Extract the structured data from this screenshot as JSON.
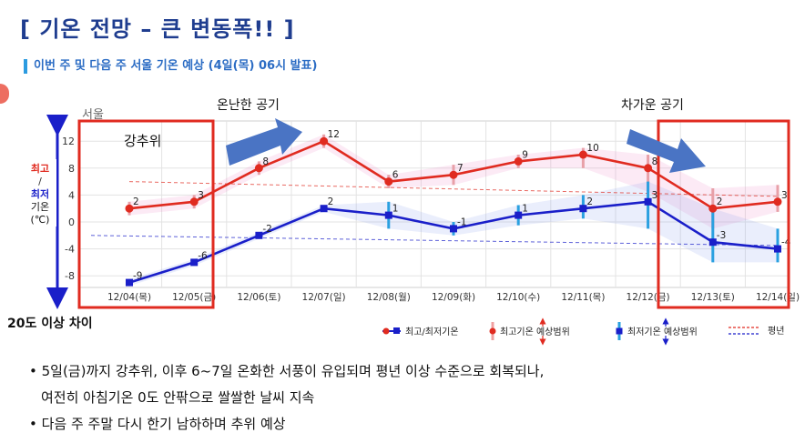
{
  "title": "[ 기온 전망 – 큰 변동폭!! ]",
  "subtitle": "이번 주 및 다음 주 서울 기온 예상 (4일(목) 06시 발표)",
  "city": "서울",
  "ylabel": {
    "l1": "최고",
    "l2": "/",
    "l3": "최저",
    "l4": "기온",
    "l5": "(℃)"
  },
  "annotations": {
    "cold": "강추위",
    "warm_air": "온난한 공기",
    "cold_air": "차가운 공기",
    "diff": "20도 이상 차이"
  },
  "legend": {
    "obs": "최고/최저기온",
    "max_range": "최고기온 예상범위",
    "min_range": "최저기온 예상범위",
    "normal": "평년"
  },
  "bullets": [
    "• 5일(금)까지 강추위, 이후 6~7일 온화한 서풍이 유입되며 평년 이상 수준으로 회복되나,",
    "   여전히 아침기온 0도 안팎으로 쌀쌀한 날씨 지속",
    "• 다음 주 주말 다시 한기 남하하며 추위 예상"
  ],
  "chart_data": {
    "type": "line",
    "categories": [
      "12/04(목)",
      "12/05(금)",
      "12/06(토)",
      "12/07(일)",
      "12/08(월)",
      "12/09(화)",
      "12/10(수)",
      "12/11(목)",
      "12/12(금)",
      "12/13(토)",
      "12/14(일)"
    ],
    "yticks": [
      -8,
      -4,
      0,
      4,
      8,
      12
    ],
    "ylim": [
      -10,
      14
    ],
    "series": [
      {
        "key": "max",
        "values": [
          2,
          3,
          8,
          12,
          6,
          7,
          9,
          10,
          8,
          2,
          3
        ],
        "color": "#e02b20"
      },
      {
        "key": "min",
        "values": [
          -9,
          -6,
          -2,
          2,
          1,
          -1,
          1,
          2,
          3,
          -3,
          -4
        ],
        "color": "#1a1fc9"
      }
    ],
    "max_range": [
      [
        1,
        3
      ],
      [
        2,
        4
      ],
      [
        7,
        9
      ],
      [
        11,
        13
      ],
      [
        5,
        7
      ],
      [
        5.5,
        8.5
      ],
      [
        8,
        10
      ],
      [
        8,
        11
      ],
      [
        4.5,
        10
      ],
      [
        -1,
        5
      ],
      [
        1.5,
        5.5
      ]
    ],
    "min_range": [
      [
        -9.5,
        -8.5
      ],
      [
        -6.5,
        -5.5
      ],
      [
        -2.5,
        -1.5
      ],
      [
        1.5,
        2.5
      ],
      [
        -1,
        3
      ],
      [
        -2,
        0
      ],
      [
        -0.5,
        2.5
      ],
      [
        0.5,
        4
      ],
      [
        -1,
        6
      ],
      [
        -6,
        2
      ],
      [
        -6,
        -1
      ]
    ],
    "normal_max": [
      6,
      3.8
    ],
    "normal_min": [
      -2,
      -3.5
    ],
    "grid": true,
    "legend_position": "bottom-right"
  }
}
